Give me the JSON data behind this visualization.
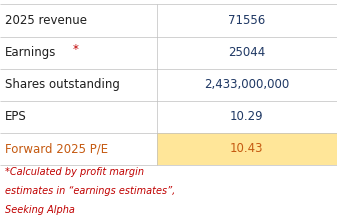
{
  "rows": [
    {
      "label": "2025 revenue",
      "label_color": "#1f1f1f",
      "asterisk": false,
      "value": "71556",
      "value_color": "#1f3864",
      "bg_left": "#ffffff",
      "bg_right": "#ffffff"
    },
    {
      "label": "Earnings",
      "label_color": "#1f1f1f",
      "asterisk": true,
      "value": "25044",
      "value_color": "#1f3864",
      "bg_left": "#ffffff",
      "bg_right": "#ffffff"
    },
    {
      "label": "Shares outstanding",
      "label_color": "#1f1f1f",
      "asterisk": false,
      "value": "2,433,000,000",
      "value_color": "#1f3864",
      "bg_left": "#ffffff",
      "bg_right": "#ffffff"
    },
    {
      "label": "EPS",
      "label_color": "#1f1f1f",
      "asterisk": false,
      "value": "10.29",
      "value_color": "#1f3864",
      "bg_left": "#ffffff",
      "bg_right": "#ffffff"
    },
    {
      "label": "Forward 2025 P/E",
      "label_color": "#c55a11",
      "asterisk": false,
      "value": "10.43",
      "value_color": "#c55a11",
      "bg_left": "#ffffff",
      "bg_right": "#ffe699"
    }
  ],
  "footnote_line1": "*Calculated by profit margin",
  "footnote_line2": "estimates in “earnings estimates”,",
  "footnote_line3": "Seeking Alpha",
  "footnote_color": "#c00000",
  "asterisk_color": "#c00000",
  "divider_color": "#bfbfbf",
  "col_split": 0.465,
  "background_color": "#ffffff",
  "label_fontsize": 8.5,
  "value_fontsize": 8.5,
  "footnote_fontsize": 7.0
}
